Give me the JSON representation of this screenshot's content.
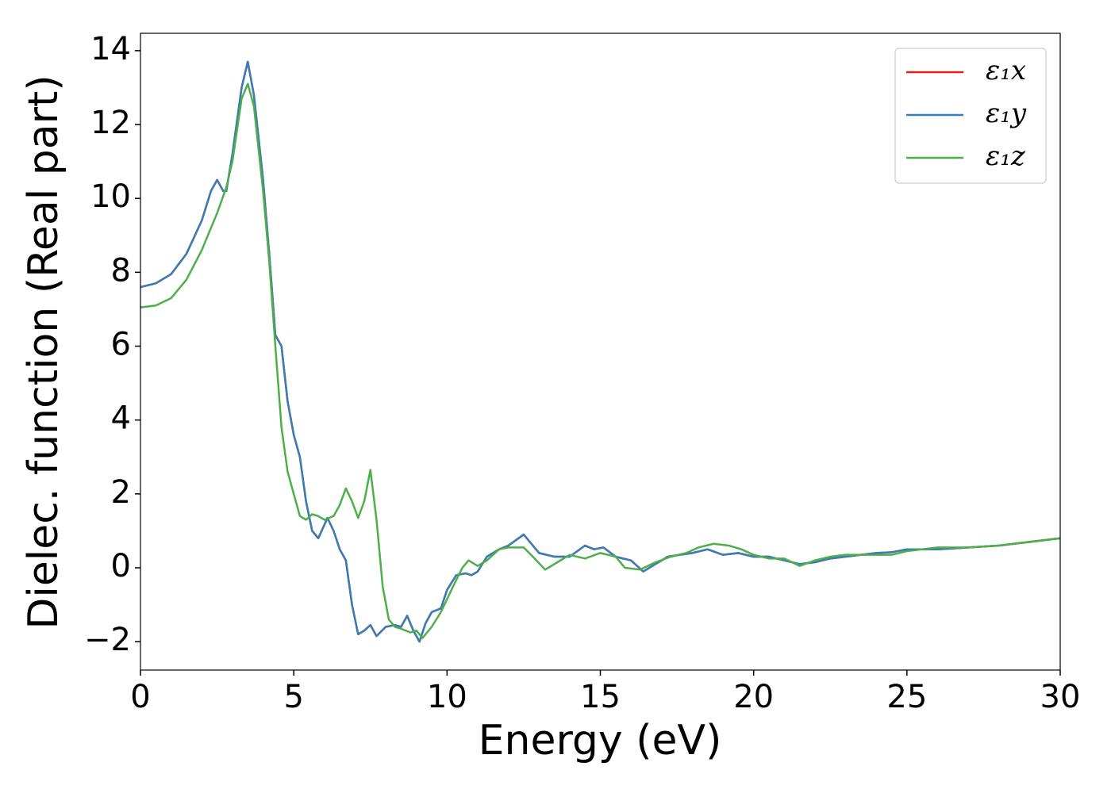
{
  "chart_data": {
    "type": "line",
    "xlabel": "Energy (eV)",
    "ylabel": "Dielec. function (Real part)",
    "xlim": [
      0,
      30
    ],
    "ylim": [
      -2.77,
      14.47
    ],
    "xticks": [
      0,
      5,
      10,
      15,
      20,
      25,
      30
    ],
    "yticks": [
      {
        "value": -2,
        "label": "−2"
      },
      0,
      2,
      4,
      6,
      8,
      10,
      12,
      14
    ],
    "legend": "upper right",
    "series": [
      {
        "name": "ε₁x",
        "color": "#e41a1c",
        "x": [
          0,
          0.5,
          1,
          1.5,
          2,
          2.3,
          2.5,
          2.7,
          2.8,
          3,
          3.3,
          3.5,
          3.7,
          4,
          4.2,
          4.4,
          4.6,
          4.8,
          5,
          5.2,
          5.4,
          5.6,
          5.8,
          6.1,
          6.3,
          6.5,
          6.7,
          6.9,
          7.1,
          7.3,
          7.5,
          7.7,
          8,
          8.3,
          8.5,
          8.7,
          8.9,
          9.1,
          9.3,
          9.5,
          9.8,
          10,
          10.3,
          10.6,
          10.8,
          11,
          11.3,
          11.7,
          12,
          12.5,
          12.7,
          13,
          13.5,
          14,
          14.5,
          14.8,
          15.1,
          15.5,
          16,
          16.4,
          16.8,
          17.2,
          17.6,
          18,
          18.5,
          19,
          19.5,
          20,
          20.5,
          21,
          21.5,
          22,
          22.5,
          23,
          23.5,
          24,
          24.5,
          25,
          26,
          27,
          28,
          29,
          30
        ],
        "values": [
          7.6,
          7.7,
          7.95,
          8.5,
          9.4,
          10.2,
          10.5,
          10.2,
          10.2,
          11.2,
          13,
          13.7,
          12.8,
          10.5,
          8.5,
          6.3,
          6,
          4.5,
          3.6,
          3,
          1.8,
          1.0,
          0.8,
          1.35,
          1.0,
          0.5,
          0.2,
          -1,
          -1.8,
          -1.7,
          -1.55,
          -1.85,
          -1.6,
          -1.55,
          -1.6,
          -1.3,
          -1.7,
          -2.0,
          -1.5,
          -1.2,
          -1.1,
          -0.6,
          -0.2,
          -0.15,
          -0.2,
          -0.1,
          0.3,
          0.5,
          0.6,
          0.9,
          0.7,
          0.4,
          0.3,
          0.3,
          0.6,
          0.5,
          0.55,
          0.3,
          0.2,
          -0.1,
          0.1,
          0.3,
          0.35,
          0.4,
          0.5,
          0.35,
          0.4,
          0.3,
          0.3,
          0.2,
          0.1,
          0.15,
          0.25,
          0.3,
          0.35,
          0.4,
          0.42,
          0.5,
          0.5,
          0.55,
          0.6,
          0.7,
          0.8
        ]
      },
      {
        "name": "ε₁y",
        "color": "#377eb8",
        "x": [
          0,
          0.5,
          1,
          1.5,
          2,
          2.3,
          2.5,
          2.7,
          2.8,
          3,
          3.3,
          3.5,
          3.7,
          4,
          4.2,
          4.4,
          4.6,
          4.8,
          5,
          5.2,
          5.4,
          5.6,
          5.8,
          6.1,
          6.3,
          6.5,
          6.7,
          6.9,
          7.1,
          7.3,
          7.5,
          7.7,
          8,
          8.3,
          8.5,
          8.7,
          8.9,
          9.1,
          9.3,
          9.5,
          9.8,
          10,
          10.3,
          10.6,
          10.8,
          11,
          11.3,
          11.7,
          12,
          12.5,
          12.7,
          13,
          13.5,
          14,
          14.5,
          14.8,
          15.1,
          15.5,
          16,
          16.4,
          16.8,
          17.2,
          17.6,
          18,
          18.5,
          19,
          19.5,
          20,
          20.5,
          21,
          21.5,
          22,
          22.5,
          23,
          23.5,
          24,
          24.5,
          25,
          26,
          27,
          28,
          29,
          30
        ],
        "values": [
          7.6,
          7.7,
          7.95,
          8.5,
          9.4,
          10.2,
          10.5,
          10.2,
          10.2,
          11.2,
          13,
          13.7,
          12.8,
          10.5,
          8.5,
          6.3,
          6,
          4.5,
          3.6,
          3,
          1.8,
          1.0,
          0.8,
          1.35,
          1.0,
          0.5,
          0.2,
          -1,
          -1.8,
          -1.7,
          -1.55,
          -1.85,
          -1.6,
          -1.55,
          -1.6,
          -1.3,
          -1.7,
          -2.0,
          -1.5,
          -1.2,
          -1.1,
          -0.6,
          -0.2,
          -0.15,
          -0.2,
          -0.1,
          0.3,
          0.5,
          0.6,
          0.9,
          0.7,
          0.4,
          0.3,
          0.3,
          0.6,
          0.5,
          0.55,
          0.3,
          0.2,
          -0.1,
          0.1,
          0.3,
          0.35,
          0.4,
          0.5,
          0.35,
          0.4,
          0.3,
          0.3,
          0.2,
          0.1,
          0.15,
          0.25,
          0.3,
          0.35,
          0.4,
          0.42,
          0.5,
          0.5,
          0.55,
          0.6,
          0.7,
          0.8
        ]
      },
      {
        "name": "ε₁z",
        "color": "#4daf4a",
        "x": [
          0,
          0.5,
          1,
          1.5,
          2,
          2.5,
          2.8,
          3,
          3.3,
          3.5,
          3.7,
          4,
          4.2,
          4.4,
          4.6,
          4.8,
          5,
          5.2,
          5.4,
          5.6,
          5.8,
          6,
          6.3,
          6.5,
          6.7,
          6.9,
          7.1,
          7.3,
          7.5,
          7.7,
          7.9,
          8.1,
          8.3,
          8.5,
          8.8,
          9,
          9.2,
          9.5,
          9.8,
          10.2,
          10.5,
          10.7,
          11,
          11.3,
          11.7,
          12,
          12.5,
          12.8,
          13.2,
          13.6,
          14,
          14.5,
          15,
          15.5,
          15.8,
          16.3,
          16.8,
          17.3,
          17.8,
          18.2,
          18.7,
          19.2,
          19.6,
          20,
          20.5,
          21,
          21.5,
          22,
          22.5,
          23,
          23.5,
          24,
          24.5,
          25,
          26,
          27,
          28,
          29,
          30
        ],
        "values": [
          7.05,
          7.1,
          7.3,
          7.8,
          8.6,
          9.6,
          10.3,
          11,
          12.7,
          13.1,
          12.5,
          10.2,
          8.3,
          6,
          3.8,
          2.6,
          2,
          1.4,
          1.3,
          1.45,
          1.4,
          1.3,
          1.4,
          1.7,
          2.15,
          1.8,
          1.35,
          1.8,
          2.65,
          1.3,
          -0.5,
          -1.4,
          -1.6,
          -1.65,
          -1.75,
          -1.7,
          -1.9,
          -1.6,
          -1.2,
          -0.5,
          0,
          0.2,
          0.05,
          0.2,
          0.5,
          0.55,
          0.55,
          0.3,
          -0.05,
          0.15,
          0.35,
          0.25,
          0.4,
          0.3,
          0,
          -0.05,
          0.15,
          0.3,
          0.4,
          0.55,
          0.65,
          0.6,
          0.5,
          0.35,
          0.25,
          0.25,
          0.05,
          0.2,
          0.3,
          0.35,
          0.35,
          0.35,
          0.35,
          0.45,
          0.55,
          0.55,
          0.6,
          0.7,
          0.8
        ]
      }
    ]
  }
}
